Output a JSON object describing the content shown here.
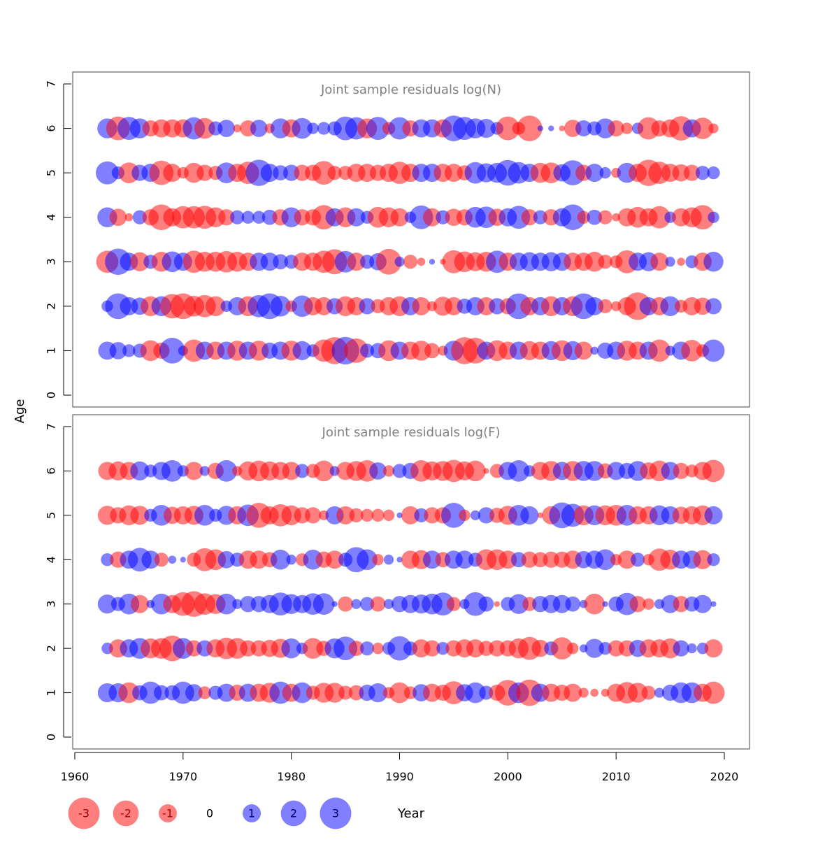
{
  "figure": {
    "ylabel": "Age",
    "xlabel": "Year"
  },
  "colors": {
    "negative": "#ff0000",
    "positive": "#0000ff",
    "bubble_alpha": 0.5,
    "title_text": "#808080"
  },
  "chart_data": [
    {
      "type": "scatter",
      "title": "Joint sample residuals log(N)",
      "xlim": [
        1960,
        2020
      ],
      "ylim": [
        0,
        7
      ],
      "x_ticks": [
        1960,
        1970,
        1980,
        1990,
        2000,
        2010,
        2020
      ],
      "y_ticks": [
        0,
        1,
        2,
        3,
        4,
        5,
        6,
        7
      ],
      "x": [
        1963,
        1964,
        1965,
        1966,
        1967,
        1968,
        1969,
        1970,
        1971,
        1972,
        1973,
        1974,
        1975,
        1976,
        1977,
        1978,
        1979,
        1980,
        1981,
        1982,
        1983,
        1984,
        1985,
        1986,
        1987,
        1988,
        1989,
        1990,
        1991,
        1992,
        1993,
        1994,
        1995,
        1996,
        1997,
        1998,
        1999,
        2000,
        2001,
        2002,
        2003,
        2004,
        2005,
        2006,
        2007,
        2008,
        2009,
        2010,
        2011,
        2012,
        2013,
        2014,
        2015,
        2016,
        2017,
        2018,
        2019
      ],
      "ages": [
        1,
        2,
        3,
        4,
        5,
        6
      ],
      "residuals": {
        "1": [
          1.0,
          0.9,
          0.5,
          0.6,
          -1.3,
          -0.8,
          2.0,
          0.3,
          -1.5,
          1.0,
          -1.0,
          1.0,
          -1.2,
          1.0,
          -1.2,
          0.8,
          1.0,
          -1.2,
          1.1,
          0.5,
          -1.5,
          -2.2,
          2.3,
          -1.8,
          0.6,
          0.7,
          -1.3,
          1.0,
          -1.0,
          -1.2,
          -0.7,
          -0.3,
          1.2,
          -2.2,
          -2.0,
          1.0,
          -1.3,
          -1.0,
          1.0,
          -1.1,
          -1.0,
          1.1,
          -1.3,
          1.1,
          -1.0,
          0.2,
          0.8,
          1.0,
          -1.2,
          -1.0,
          1.0,
          -1.5,
          0.3,
          1.0,
          -1.4,
          -0.5,
          1.5
        ],
        "2": [
          0.4,
          2.0,
          1.0,
          0.9,
          -1.2,
          1.2,
          -1.8,
          -2.0,
          -1.3,
          -1.5,
          -1.2,
          0.4,
          1.0,
          -1.2,
          1.5,
          2.0,
          1.3,
          -0.4,
          1.4,
          -1.0,
          -1.0,
          0.8,
          -1.2,
          -1.0,
          0.8,
          -0.6,
          -1.0,
          -1.2,
          1.0,
          -1.0,
          -0.3,
          -1.1,
          -1.0,
          0.7,
          1.0,
          -1.0,
          0.8,
          -0.8,
          2.0,
          -1.0,
          1.0,
          -1.2,
          1.0,
          -1.2,
          2.0,
          1.0,
          -0.6,
          -0.3,
          -1.0,
          -2.3,
          1.0,
          -1.0,
          1.2,
          -0.5,
          -1.0,
          -0.9,
          0.8
        ],
        "3": [
          -1.5,
          2.1,
          1.0,
          -1.1,
          0.6,
          -1.2,
          1.3,
          1.0,
          -1.5,
          -1.2,
          -1.2,
          -1.4,
          -1.2,
          -1.0,
          1.0,
          1.0,
          0.7,
          0.6,
          -1.0,
          -1.0,
          -1.5,
          -1.9,
          1.4,
          -1.0,
          0.6,
          0.9,
          -2.0,
          0.3,
          -0.6,
          -0.2,
          0.1,
          -0.1,
          -1.6,
          -1.3,
          -1.1,
          -1.2,
          1.5,
          -1.0,
          1.0,
          1.1,
          1.0,
          1.1,
          1.0,
          -1.0,
          -1.0,
          -1.2,
          -0.6,
          -0.5,
          -1.6,
          1.0,
          1.1,
          -1.0,
          0.3,
          -0.2,
          0.5,
          -1.0,
          1.2
        ],
        "4": [
          1.2,
          -0.9,
          -0.2,
          0.6,
          -0.8,
          -2.0,
          -1.0,
          -1.5,
          -1.5,
          -1.6,
          -1.2,
          -0.8,
          0.6,
          0.5,
          0.5,
          0.7,
          -0.8,
          1.2,
          -0.8,
          -0.8,
          -1.8,
          1.0,
          -1.2,
          1.0,
          0.5,
          -1.3,
          -1.2,
          -1.0,
          0.4,
          1.7,
          -1.0,
          0.6,
          -0.9,
          -0.8,
          1.3,
          1.4,
          -0.9,
          1.0,
          1.6,
          -0.8,
          0.6,
          -0.8,
          1.0,
          2.0,
          -0.5,
          0.7,
          -0.6,
          -0.2,
          -1.0,
          -1.3,
          -1.0,
          -1.5,
          0.4,
          -1.0,
          -1.2,
          -1.8,
          0.4
        ],
        "5": [
          1.6,
          0.5,
          -1.3,
          0.8,
          1.0,
          -1.8,
          -1.0,
          -0.4,
          -1.2,
          -0.8,
          -0.6,
          1.3,
          -1.0,
          -1.5,
          2.1,
          1.0,
          0.7,
          0.8,
          -0.8,
          -0.8,
          -1.7,
          -0.6,
          -0.6,
          -1.0,
          -1.0,
          -0.8,
          -1.0,
          -1.5,
          -1.0,
          1.0,
          1.0,
          -1.0,
          -1.0,
          -0.7,
          1.4,
          1.1,
          1.2,
          2.0,
          1.4,
          1.0,
          -1.2,
          -1.3,
          0.9,
          1.9,
          -0.8,
          1.0,
          0.4,
          -0.3,
          1.2,
          -1.0,
          -2.1,
          -1.5,
          -1.0,
          -0.9,
          -0.8,
          0.6,
          0.5
        ],
        "6": [
          1.2,
          -1.7,
          1.6,
          1.2,
          -0.8,
          -1.0,
          -1.0,
          -1.0,
          1.5,
          -1.3,
          0.6,
          0.9,
          -0.2,
          -0.8,
          0.9,
          -0.3,
          1.2,
          -1.0,
          1.3,
          0.4,
          0.5,
          0.6,
          1.7,
          1.5,
          -1.2,
          1.6,
          -0.5,
          1.5,
          -0.8,
          1.0,
          1.0,
          -1.0,
          2.0,
          1.6,
          1.2,
          1.1,
          0.5,
          -1.7,
          -0.5,
          -2.0,
          0.1,
          0.1,
          -0.1,
          -0.9,
          0.8,
          0.6,
          1.2,
          -0.8,
          -0.4,
          0.4,
          -1.5,
          -0.8,
          -1.0,
          -1.8,
          1.0,
          -1.4,
          -0.3
        ]
      }
    },
    {
      "type": "scatter",
      "title": "Joint sample residuals log(F)",
      "xlim": [
        1960,
        2020
      ],
      "ylim": [
        0,
        7
      ],
      "x_ticks": [
        1960,
        1970,
        1980,
        1990,
        2000,
        2010,
        2020
      ],
      "y_ticks": [
        0,
        1,
        2,
        3,
        4,
        5,
        6,
        7
      ],
      "x": [
        1963,
        1964,
        1965,
        1966,
        1967,
        1968,
        1969,
        1970,
        1971,
        1972,
        1973,
        1974,
        1975,
        1976,
        1977,
        1978,
        1979,
        1980,
        1981,
        1982,
        1983,
        1984,
        1985,
        1986,
        1987,
        1988,
        1989,
        1990,
        1991,
        1992,
        1993,
        1994,
        1995,
        1996,
        1997,
        1998,
        1999,
        2000,
        2001,
        2002,
        2003,
        2004,
        2005,
        2006,
        2007,
        2008,
        2009,
        2010,
        2011,
        2012,
        2013,
        2014,
        2015,
        2016,
        2017,
        2018,
        2019
      ],
      "ages": [
        1,
        2,
        3,
        4,
        5,
        6
      ],
      "residuals": {
        "1": [
          1.1,
          1.1,
          -1.3,
          0.7,
          1.5,
          0.7,
          0.7,
          1.5,
          0.9,
          -0.5,
          0.6,
          1.0,
          -0.8,
          1.0,
          -1.0,
          -1.2,
          1.5,
          -1.0,
          1.3,
          -0.6,
          -1.2,
          -1.2,
          -0.6,
          -0.7,
          0.8,
          1.1,
          -0.4,
          -1.3,
          -0.5,
          0.9,
          -1.0,
          -0.8,
          -1.6,
          0.9,
          1.3,
          0.6,
          -0.8,
          -2.0,
          1.3,
          -2.1,
          1.0,
          -1.0,
          -0.8,
          -1.0,
          -0.3,
          -0.2,
          -0.2,
          -1.0,
          -1.4,
          -1.2,
          -0.6,
          0.3,
          0.8,
          1.3,
          1.3,
          -1.0,
          -1.5
        ],
        "2": [
          0.4,
          -1.0,
          1.0,
          1.3,
          -1.2,
          -1.3,
          -2.0,
          1.3,
          -0.8,
          0.8,
          -1.0,
          -1.4,
          -1.3,
          -0.8,
          -0.8,
          -0.9,
          -1.1,
          1.2,
          0.4,
          -1.3,
          -0.7,
          1.2,
          1.7,
          -0.7,
          0.6,
          -0.4,
          0.5,
          1.8,
          0.6,
          -1.0,
          -0.8,
          0.5,
          -0.8,
          -1.0,
          -1.0,
          -0.7,
          -0.8,
          -0.8,
          -1.2,
          -1.6,
          -0.9,
          0.6,
          -1.5,
          -0.4,
          0.2,
          1.1,
          0.5,
          -0.8,
          -0.8,
          0.9,
          -1.0,
          -1.0,
          -1.2,
          0.8,
          0.3,
          0.4,
          -1.0
        ],
        "3": [
          1.1,
          0.6,
          1.3,
          -1.0,
          0.2,
          1.3,
          -1.0,
          -1.7,
          -2.0,
          -1.4,
          -1.2,
          1.3,
          0.3,
          0.8,
          0.8,
          1.0,
          1.6,
          1.2,
          1.0,
          1.4,
          1.4,
          0.1,
          -0.7,
          0.3,
          0.6,
          -0.7,
          0.3,
          0.8,
          1.0,
          1.1,
          1.3,
          1.6,
          -0.6,
          0.3,
          1.7,
          0.7,
          -0.1,
          0.6,
          1.2,
          -0.6,
          0.8,
          1.0,
          1.0,
          0.7,
          0.2,
          -1.3,
          0.1,
          0.7,
          1.5,
          -0.8,
          -0.4,
          0.3,
          1.0,
          -0.8,
          0.7,
          1.0,
          0.1
        ],
        "4": [
          0.5,
          -0.8,
          1.0,
          1.7,
          1.0,
          -0.6,
          0.2,
          0.1,
          -0.6,
          -1.6,
          -1.3,
          0.9,
          0.6,
          -1.0,
          -1.0,
          -0.7,
          1.2,
          0.3,
          -0.5,
          1.2,
          -0.8,
          -1.0,
          0.6,
          1.9,
          1.3,
          -0.4,
          0.3,
          0.1,
          -1.0,
          -1.1,
          1.0,
          -0.7,
          1.0,
          1.0,
          0.6,
          -1.3,
          -1.3,
          -1.0,
          0.7,
          -0.8,
          -0.7,
          -0.8,
          -0.8,
          -1.0,
          0.9,
          1.0,
          1.3,
          -0.4,
          -1.0,
          0.6,
          -0.4,
          -1.5,
          -1.2,
          1.0,
          1.0,
          -1.1,
          0.5
        ],
        "5": [
          -1.1,
          -0.8,
          -1.2,
          -1.1,
          0.5,
          1.3,
          -0.9,
          -1.0,
          -1.1,
          1.3,
          0.5,
          1.1,
          -1.0,
          1.4,
          -1.9,
          -1.0,
          -1.5,
          -1.2,
          -0.8,
          -0.8,
          -0.3,
          1.0,
          -1.0,
          -0.6,
          -0.5,
          -0.5,
          -0.4,
          0.1,
          -1.0,
          0.6,
          -0.8,
          -0.8,
          1.9,
          -0.4,
          0.3,
          0.8,
          -0.7,
          -1.1,
          1.3,
          1.0,
          -0.1,
          -1.0,
          2.0,
          1.6,
          -1.2,
          1.2,
          -1.2,
          -1.3,
          1.3,
          -1.0,
          -1.0,
          1.2,
          1.0,
          -0.9,
          -1.0,
          -1.2,
          1.0
        ],
        "6": [
          -1.0,
          -1.1,
          -1.0,
          1.1,
          0.5,
          1.0,
          1.4,
          0.4,
          -1.0,
          0.3,
          -0.8,
          1.4,
          -0.3,
          -1.1,
          -1.3,
          -1.1,
          -1.0,
          -1.0,
          0.6,
          -0.6,
          -1.3,
          0.3,
          -1.0,
          -1.2,
          -1.4,
          0.9,
          -0.4,
          0.6,
          0.8,
          -1.4,
          -1.1,
          -1.2,
          -1.5,
          -1.1,
          -1.3,
          -0.1,
          -0.6,
          1.0,
          1.4,
          0.4,
          -1.0,
          -1.2,
          1.0,
          -1.2,
          1.2,
          1.2,
          -0.7,
          1.0,
          0.8,
          1.2,
          -0.9,
          -1.3,
          1.0,
          -0.8,
          -0.5,
          -1.0,
          -1.5
        ]
      }
    }
  ],
  "legend": {
    "items": [
      {
        "value": -3,
        "label": "-3"
      },
      {
        "value": -2,
        "label": "-2"
      },
      {
        "value": -1,
        "label": "-1"
      },
      {
        "value": 0,
        "label": "0"
      },
      {
        "value": 1,
        "label": "1"
      },
      {
        "value": 2,
        "label": "2"
      },
      {
        "value": 3,
        "label": "3"
      }
    ]
  }
}
